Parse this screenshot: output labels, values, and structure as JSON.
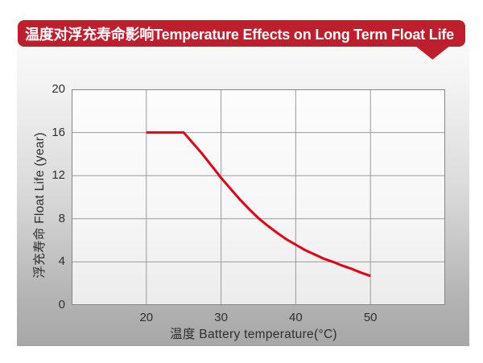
{
  "banner": {
    "title": "温度对浮充寿命影响Temperature Effects on Long Term Float Life",
    "bg_color": "#bf1f2c",
    "text_color": "#ffffff"
  },
  "colors": {
    "accent_red": "#bf1f2c",
    "curve_red": "#e30015",
    "grid": "#9a9a9a",
    "plot_border": "#858585",
    "tick_text": "#2f2f2f",
    "panel_gradient_top": "#fefefe",
    "panel_gradient_bottom": "#a7a7a7"
  },
  "chart_data": {
    "type": "line",
    "title": "温度对浮充寿命影响Temperature Effects on Long Term Float Life",
    "xlabel": "温度  Battery temperature(°C)",
    "ylabel": "浮充寿命 Float Life (year)",
    "xlim": [
      10,
      60
    ],
    "ylim": [
      0,
      20
    ],
    "x_ticks": [
      20,
      30,
      40,
      50
    ],
    "y_ticks": [
      0,
      4,
      8,
      12,
      16,
      20
    ],
    "grid": true,
    "legend": "none",
    "series": [
      {
        "name": "float-life-vs-temperature",
        "color": "#e30015",
        "points": [
          [
            20,
            16
          ],
          [
            25,
            16
          ],
          [
            26.25,
            15.0
          ],
          [
            27.5,
            14.0
          ],
          [
            28.75,
            12.9
          ],
          [
            30,
            11.8
          ],
          [
            31.25,
            10.8
          ],
          [
            32.5,
            9.8
          ],
          [
            33.75,
            8.9
          ],
          [
            35,
            8.05
          ],
          [
            36.25,
            7.35
          ],
          [
            37.5,
            6.7
          ],
          [
            38.75,
            6.1
          ],
          [
            40,
            5.6
          ],
          [
            41.25,
            5.1
          ],
          [
            42.5,
            4.7
          ],
          [
            43.75,
            4.3
          ],
          [
            45,
            4.0
          ],
          [
            46.25,
            3.65
          ],
          [
            47.5,
            3.35
          ],
          [
            48.75,
            3.0
          ],
          [
            50,
            2.7
          ]
        ]
      }
    ]
  }
}
